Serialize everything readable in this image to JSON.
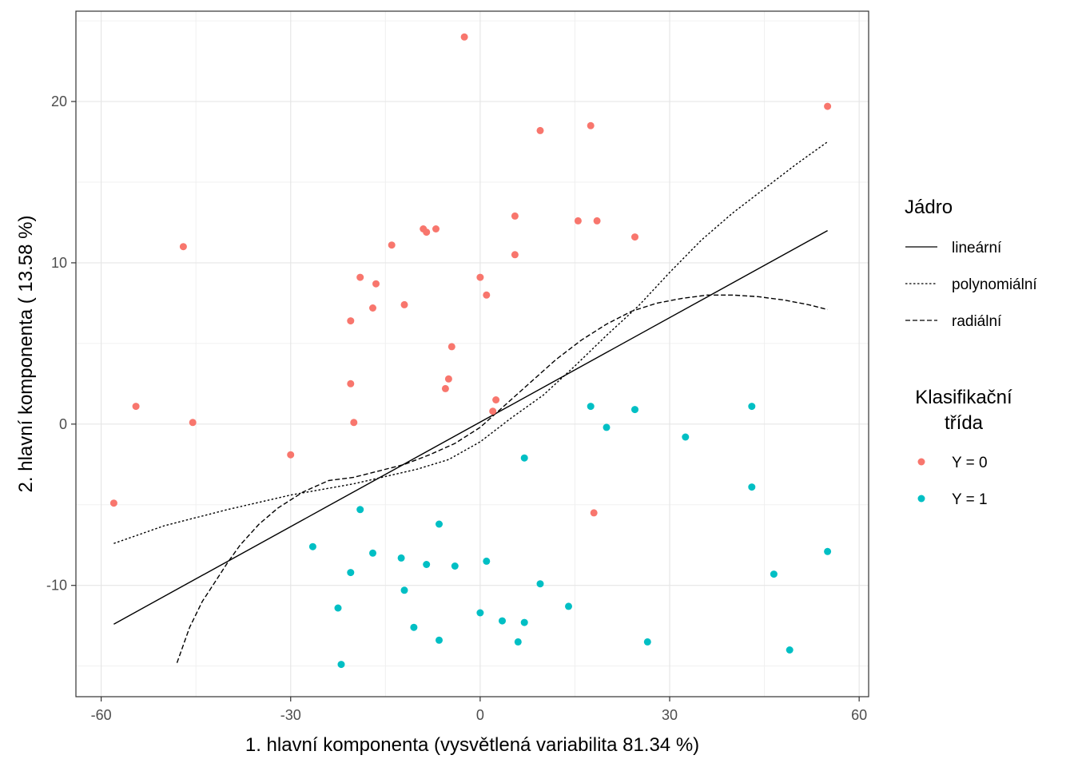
{
  "chart_data": {
    "type": "scatter",
    "xlabel": "1. hlavní komponenta (vysvětlená variabilita 81.34 %)",
    "ylabel": "2. hlavní komponenta ( 13.58 %)",
    "xlim": [
      -64,
      61.5
    ],
    "ylim": [
      -16.9,
      25.6
    ],
    "x_ticks": [
      -60,
      -30,
      0,
      30,
      60
    ],
    "x_tick_labels": [
      "-60",
      "-30",
      "0",
      "30",
      "60"
    ],
    "y_ticks": [
      -10,
      0,
      10,
      20
    ],
    "y_tick_labels": [
      "-10",
      "0",
      "10",
      "20"
    ],
    "grid": true,
    "legends": {
      "kernel": {
        "title": "Jádro",
        "items": [
          {
            "label": "lineární",
            "linetype": "solid"
          },
          {
            "label": "polynomiální",
            "linetype": "dotted"
          },
          {
            "label": "radiální",
            "linetype": "dashed"
          }
        ]
      },
      "class": {
        "title_line1": "Klasifikační",
        "title_line2": "třída",
        "items": [
          {
            "label": "Y = 0",
            "color": "#F8766D"
          },
          {
            "label": "Y = 1",
            "color": "#00BFC4"
          }
        ]
      }
    },
    "points": [
      {
        "name": "Y = 0",
        "color": "#F8766D",
        "x": [
          -2.5,
          55,
          9.5,
          17.5,
          5.5,
          15.5,
          18.5,
          24.5,
          -7,
          -9,
          -8.5,
          5.5,
          -14,
          -47,
          0,
          1,
          -19,
          -16.5,
          -17,
          -12,
          -20.5,
          -4.5,
          -5,
          -5.5,
          2.5,
          2,
          -20.5,
          -20,
          -54.5,
          -45.5,
          -30,
          -58,
          18
        ],
        "y": [
          24,
          19.7,
          18.2,
          18.5,
          12.9,
          12.6,
          12.6,
          11.6,
          12.1,
          12.1,
          11.9,
          10.5,
          11.1,
          11,
          9.1,
          8,
          9.1,
          8.7,
          7.2,
          7.4,
          6.4,
          4.8,
          2.8,
          2.2,
          1.5,
          0.8,
          2.5,
          0.1,
          1.1,
          0.1,
          -1.9,
          -4.9,
          -5.5
        ]
      },
      {
        "name": "Y = 1",
        "color": "#00BFC4",
        "x": [
          17.5,
          24.5,
          43,
          20,
          32.5,
          7,
          43,
          -19,
          -6.5,
          55,
          -26.5,
          -17,
          -12.5,
          -8.5,
          -4,
          1,
          -20.5,
          46.5,
          9.5,
          -12,
          14,
          -22.5,
          0,
          3.5,
          7,
          -10.5,
          -6.5,
          6,
          26.5,
          49,
          -22
        ],
        "y": [
          1.1,
          0.9,
          1.1,
          -0.2,
          -0.8,
          -2.1,
          -3.9,
          -5.3,
          -6.2,
          -7.9,
          -7.6,
          -8,
          -8.3,
          -8.7,
          -8.8,
          -8.5,
          -9.2,
          -9.3,
          -9.9,
          -10.3,
          -11.3,
          -11.4,
          -11.7,
          -12.2,
          -12.3,
          -12.6,
          -13.4,
          -13.5,
          -13.5,
          -14,
          -14.9
        ]
      }
    ],
    "series": [
      {
        "name": "lineární",
        "linetype": "solid",
        "x": [
          -58,
          55
        ],
        "y": [
          -12.4,
          12
        ]
      },
      {
        "name": "polynomiální",
        "linetype": "dotted",
        "x": [
          -58,
          -50,
          -40,
          -30,
          -20,
          -10,
          -5,
          0,
          5,
          10,
          15,
          20,
          25,
          30,
          35,
          40,
          45,
          50,
          55
        ],
        "y": [
          -7.4,
          -6.3,
          -5.3,
          -4.4,
          -3.7,
          -2.8,
          -2.2,
          -1.1,
          0.4,
          1.8,
          3.6,
          5.5,
          7.3,
          9.4,
          11.4,
          13.1,
          14.6,
          16.1,
          17.5
        ]
      },
      {
        "name": "radiální",
        "linetype": "dashed",
        "x": [
          -48,
          -46,
          -44,
          -42,
          -40,
          -38,
          -35,
          -32,
          -28,
          -24,
          -20,
          -16,
          -12,
          -8,
          -4,
          0,
          4,
          8,
          12,
          16,
          20,
          24,
          28,
          32,
          36,
          40,
          44,
          48,
          52,
          55
        ],
        "y": [
          -14.8,
          -12.6,
          -11,
          -9.8,
          -8.6,
          -7.5,
          -6.2,
          -5.2,
          -4.2,
          -3.5,
          -3.3,
          -2.9,
          -2.5,
          -1.9,
          -1.2,
          -0.2,
          1.2,
          2.6,
          4,
          5.2,
          6.2,
          7,
          7.5,
          7.8,
          8,
          8,
          7.9,
          7.7,
          7.4,
          7.1
        ]
      }
    ]
  }
}
